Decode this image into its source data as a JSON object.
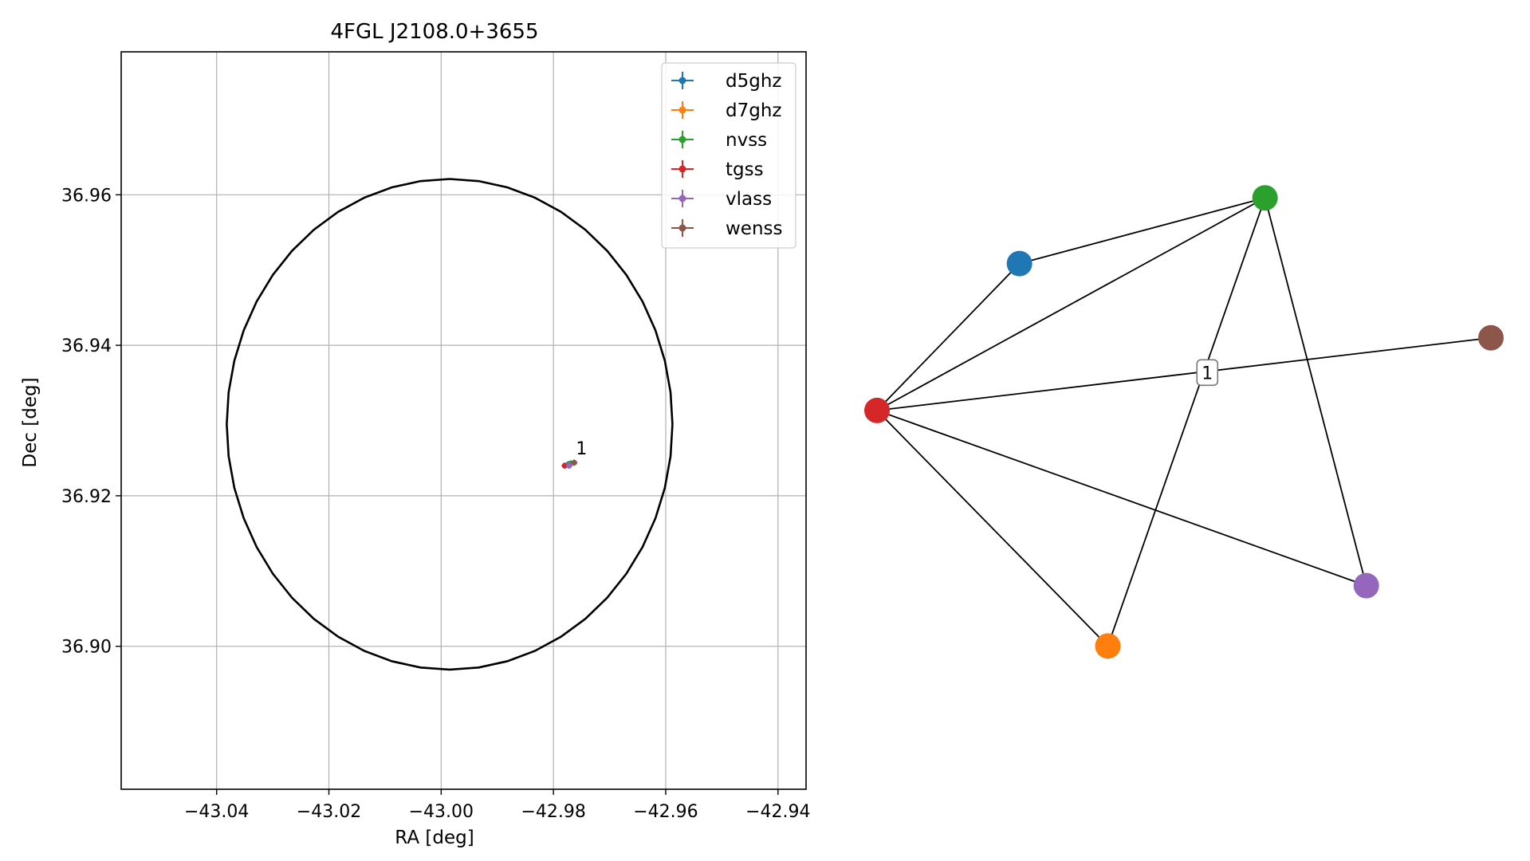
{
  "chart_data": [
    {
      "type": "scatter",
      "title": "4FGL J2108.0+3655",
      "xlabel": "RA [deg]",
      "ylabel": "Dec [deg]",
      "xlim": [
        -43.057,
        -42.935
      ],
      "ylim": [
        36.881,
        36.979
      ],
      "xticks": [
        {
          "value": -43.04,
          "label": "−43.04"
        },
        {
          "value": -43.02,
          "label": "−43.02"
        },
        {
          "value": -43.0,
          "label": "−43.00"
        },
        {
          "value": -42.98,
          "label": "−42.98"
        },
        {
          "value": -42.96,
          "label": "−42.96"
        },
        {
          "value": -42.94,
          "label": "−42.94"
        }
      ],
      "yticks": [
        {
          "value": 36.9,
          "label": "36.90"
        },
        {
          "value": 36.92,
          "label": "36.92"
        },
        {
          "value": 36.94,
          "label": "36.94"
        },
        {
          "value": 36.96,
          "label": "36.96"
        }
      ],
      "grid": true,
      "legend": "top-right",
      "ellipse": {
        "center": [
          -42.9985,
          36.9295
        ],
        "semi_axis_ra": 0.0397,
        "semi_axis_dec": 0.0326,
        "color": "#000000"
      },
      "series": [
        {
          "name": "d5ghz",
          "color": "#1f77b4",
          "points": [
            [
              -42.9773,
              36.9242
            ]
          ]
        },
        {
          "name": "d7ghz",
          "color": "#ff7f0e",
          "points": [
            [
              -42.9771,
              36.9241
            ]
          ]
        },
        {
          "name": "nvss",
          "color": "#2ca02c",
          "points": [
            [
              -42.9769,
              36.9243
            ]
          ]
        },
        {
          "name": "tgss",
          "color": "#d62728",
          "points": [
            [
              -42.978,
              36.924
            ]
          ]
        },
        {
          "name": "vlass",
          "color": "#9467bd",
          "points": [
            [
              -42.9772,
              36.924
            ]
          ]
        },
        {
          "name": "wenss",
          "color": "#8c564b",
          "points": [
            [
              -42.9763,
              36.9244
            ]
          ]
        }
      ],
      "annotations": [
        {
          "text": "1",
          "x": -42.976,
          "y": 36.9255
        }
      ]
    },
    {
      "type": "network",
      "nodes": [
        {
          "id": "d5ghz",
          "color": "#1f77b4",
          "x": 0.232,
          "y": 0.82
        },
        {
          "id": "d7ghz",
          "color": "#ff7f0e",
          "x": 0.376,
          "y": 0.104
        },
        {
          "id": "nvss",
          "color": "#2ca02c",
          "x": 0.632,
          "y": 0.943
        },
        {
          "id": "tgss",
          "color": "#d62728",
          "x": 0.0,
          "y": 0.545
        },
        {
          "id": "vlass",
          "color": "#9467bd",
          "x": 0.797,
          "y": 0.217
        },
        {
          "id": "wenss",
          "color": "#8c564b",
          "x": 1.0,
          "y": 0.681
        }
      ],
      "edges": [
        [
          "tgss",
          "d5ghz"
        ],
        [
          "tgss",
          "nvss"
        ],
        [
          "tgss",
          "wenss"
        ],
        [
          "tgss",
          "vlass"
        ],
        [
          "tgss",
          "d7ghz"
        ],
        [
          "d5ghz",
          "nvss"
        ],
        [
          "nvss",
          "d7ghz"
        ],
        [
          "nvss",
          "vlass"
        ]
      ],
      "edge_labels": [
        {
          "text": "1",
          "x": 0.538,
          "y": 0.616
        }
      ]
    }
  ]
}
